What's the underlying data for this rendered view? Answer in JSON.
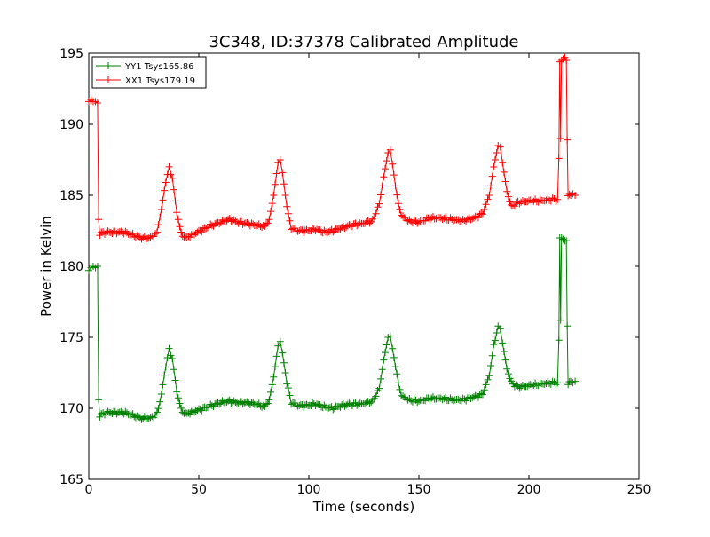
{
  "chart_data": {
    "type": "line",
    "title": "3C348, ID:37378 Calibrated Amplitude",
    "xlabel": "Time (seconds)",
    "ylabel": "Power in Kelvin",
    "xlim": [
      0,
      250
    ],
    "ylim": [
      165,
      195
    ],
    "xticks": [
      0,
      50,
      100,
      150,
      200,
      250
    ],
    "yticks": [
      165,
      170,
      175,
      180,
      185,
      190,
      195
    ],
    "grid": false,
    "legend_position": "top-left",
    "marker": "+",
    "series": [
      {
        "name": "YY1 Tsys165.86",
        "color": "#008000",
        "base": 169.5,
        "points": [
          [
            0,
            179.7
          ],
          [
            1,
            179.9
          ],
          [
            2,
            180.0
          ],
          [
            3,
            179.9
          ],
          [
            4,
            180.0
          ],
          [
            4.5,
            170.6
          ],
          [
            5,
            169.5
          ],
          [
            8,
            169.7
          ],
          [
            12,
            169.7
          ],
          [
            16,
            169.7
          ],
          [
            20,
            169.5
          ],
          [
            24,
            169.3
          ],
          [
            28,
            169.3
          ],
          [
            31,
            169.6
          ],
          [
            33,
            171.0
          ],
          [
            35,
            173.0
          ],
          [
            36.5,
            174.1
          ],
          [
            38,
            173.5
          ],
          [
            40,
            171.2
          ],
          [
            42,
            169.9
          ],
          [
            44,
            169.6
          ],
          [
            48,
            169.8
          ],
          [
            52,
            170.0
          ],
          [
            56,
            170.2
          ],
          [
            60,
            170.4
          ],
          [
            64,
            170.5
          ],
          [
            68,
            170.4
          ],
          [
            72,
            170.4
          ],
          [
            76,
            170.3
          ],
          [
            80,
            170.1
          ],
          [
            82,
            170.6
          ],
          [
            84,
            172.2
          ],
          [
            86,
            174.4
          ],
          [
            87,
            174.7
          ],
          [
            88,
            173.9
          ],
          [
            90,
            171.8
          ],
          [
            92,
            170.4
          ],
          [
            95,
            170.2
          ],
          [
            99,
            170.2
          ],
          [
            103,
            170.3
          ],
          [
            107,
            170.1
          ],
          [
            111,
            170.0
          ],
          [
            115,
            170.2
          ],
          [
            119,
            170.3
          ],
          [
            124,
            170.3
          ],
          [
            129,
            170.5
          ],
          [
            132,
            171.4
          ],
          [
            134,
            173.4
          ],
          [
            136,
            175.0
          ],
          [
            137,
            175.1
          ],
          [
            138,
            174.2
          ],
          [
            140,
            172.3
          ],
          [
            142,
            170.9
          ],
          [
            145,
            170.6
          ],
          [
            150,
            170.5
          ],
          [
            155,
            170.7
          ],
          [
            160,
            170.7
          ],
          [
            165,
            170.6
          ],
          [
            170,
            170.6
          ],
          [
            175,
            170.8
          ],
          [
            179,
            171.0
          ],
          [
            182,
            172.3
          ],
          [
            184,
            174.4
          ],
          [
            186,
            175.8
          ],
          [
            187,
            175.6
          ],
          [
            188,
            174.6
          ],
          [
            190,
            172.8
          ],
          [
            192,
            171.8
          ],
          [
            195,
            171.5
          ],
          [
            200,
            171.6
          ],
          [
            205,
            171.7
          ],
          [
            210,
            171.8
          ],
          [
            213,
            171.8
          ],
          [
            213.6,
            174.8
          ],
          [
            214,
            182.0
          ],
          [
            214.4,
            176.2
          ],
          [
            214.8,
            182.0
          ],
          [
            215.5,
            181.9
          ],
          [
            216.3,
            181.8
          ],
          [
            217,
            181.8
          ],
          [
            217.4,
            175.8
          ],
          [
            217.8,
            171.8
          ],
          [
            219,
            171.9
          ],
          [
            220,
            171.8
          ],
          [
            221,
            171.9
          ]
        ]
      },
      {
        "name": "XX1 Tsys179.19",
        "color": "#ff0000",
        "base": 182.3,
        "points": [
          [
            0,
            191.6
          ],
          [
            1,
            191.7
          ],
          [
            2,
            191.6
          ],
          [
            3,
            191.6
          ],
          [
            4,
            191.5
          ],
          [
            4.5,
            183.3
          ],
          [
            5,
            182.3
          ],
          [
            8,
            182.4
          ],
          [
            12,
            182.4
          ],
          [
            16,
            182.4
          ],
          [
            20,
            182.2
          ],
          [
            24,
            182.0
          ],
          [
            28,
            182.0
          ],
          [
            31,
            182.4
          ],
          [
            33,
            184.0
          ],
          [
            35,
            186.0
          ],
          [
            36.5,
            186.9
          ],
          [
            38,
            186.2
          ],
          [
            40,
            183.8
          ],
          [
            42,
            182.3
          ],
          [
            44,
            182.0
          ],
          [
            48,
            182.3
          ],
          [
            52,
            182.6
          ],
          [
            56,
            182.9
          ],
          [
            60,
            183.1
          ],
          [
            64,
            183.3
          ],
          [
            68,
            183.1
          ],
          [
            72,
            183.0
          ],
          [
            76,
            182.9
          ],
          [
            80,
            182.8
          ],
          [
            82,
            183.3
          ],
          [
            84,
            185.0
          ],
          [
            86,
            187.3
          ],
          [
            87,
            187.5
          ],
          [
            88,
            186.6
          ],
          [
            90,
            184.2
          ],
          [
            92,
            182.7
          ],
          [
            95,
            182.5
          ],
          [
            99,
            182.5
          ],
          [
            103,
            182.6
          ],
          [
            107,
            182.4
          ],
          [
            111,
            182.5
          ],
          [
            115,
            182.7
          ],
          [
            119,
            182.9
          ],
          [
            124,
            183.0
          ],
          [
            129,
            183.2
          ],
          [
            132,
            184.4
          ],
          [
            134,
            186.3
          ],
          [
            136,
            188.0
          ],
          [
            137,
            188.2
          ],
          [
            138,
            187.2
          ],
          [
            140,
            184.9
          ],
          [
            142,
            183.6
          ],
          [
            145,
            183.2
          ],
          [
            150,
            183.1
          ],
          [
            155,
            183.4
          ],
          [
            160,
            183.4
          ],
          [
            165,
            183.3
          ],
          [
            170,
            183.2
          ],
          [
            175,
            183.4
          ],
          [
            179,
            183.7
          ],
          [
            182,
            185.0
          ],
          [
            184,
            187.0
          ],
          [
            186,
            188.5
          ],
          [
            187,
            188.4
          ],
          [
            188,
            187.3
          ],
          [
            190,
            185.3
          ],
          [
            192,
            184.2
          ],
          [
            195,
            184.5
          ],
          [
            200,
            184.6
          ],
          [
            205,
            184.6
          ],
          [
            210,
            184.7
          ],
          [
            213,
            184.7
          ],
          [
            213.6,
            187.6
          ],
          [
            214,
            194.4
          ],
          [
            214.4,
            189.0
          ],
          [
            214.8,
            194.5
          ],
          [
            215.5,
            194.6
          ],
          [
            216.3,
            194.7
          ],
          [
            217,
            194.5
          ],
          [
            217.4,
            188.9
          ],
          [
            217.8,
            185.1
          ],
          [
            219,
            185.0
          ],
          [
            220,
            185.1
          ],
          [
            221,
            185.0
          ]
        ]
      }
    ]
  }
}
